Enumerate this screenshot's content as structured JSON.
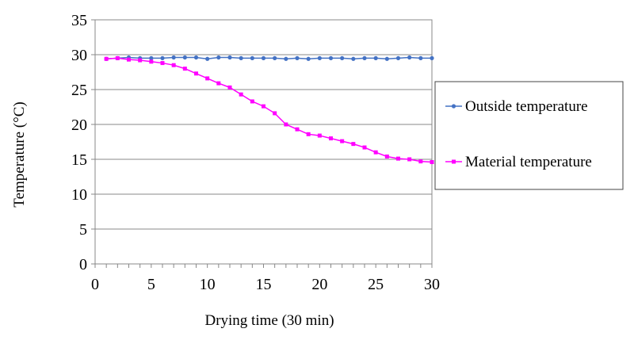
{
  "chart_data": {
    "type": "line",
    "title": "",
    "xlabel": "Drying time (30 min)",
    "ylabel": "Temperature (°C)",
    "xlim": [
      0,
      30
    ],
    "ylim": [
      0,
      35
    ],
    "x_ticks": [
      0,
      5,
      10,
      15,
      20,
      25,
      30
    ],
    "y_ticks": [
      0,
      5,
      10,
      15,
      20,
      25,
      30,
      35
    ],
    "grid": "horizontal",
    "legend_position": "right",
    "x": [
      1,
      2,
      3,
      4,
      5,
      6,
      7,
      8,
      9,
      10,
      11,
      12,
      13,
      14,
      15,
      16,
      17,
      18,
      19,
      20,
      21,
      22,
      23,
      24,
      25,
      26,
      27,
      28,
      29,
      30
    ],
    "series": [
      {
        "name": "Outside temperature",
        "color": "#4472C4",
        "marker": "circle",
        "values": [
          29.4,
          29.5,
          29.6,
          29.5,
          29.5,
          29.5,
          29.6,
          29.6,
          29.6,
          29.4,
          29.6,
          29.6,
          29.5,
          29.5,
          29.5,
          29.5,
          29.4,
          29.5,
          29.4,
          29.5,
          29.5,
          29.5,
          29.4,
          29.5,
          29.5,
          29.4,
          29.5,
          29.6,
          29.5,
          29.5
        ]
      },
      {
        "name": "Material temperature",
        "color": "#FF00FF",
        "marker": "square",
        "values": [
          29.4,
          29.5,
          29.3,
          29.2,
          29.0,
          28.8,
          28.5,
          28.0,
          27.3,
          26.6,
          25.9,
          25.3,
          24.3,
          23.3,
          22.6,
          21.6,
          20.0,
          19.3,
          18.6,
          18.4,
          18.0,
          17.6,
          17.2,
          16.7,
          16.0,
          15.4,
          15.1,
          15.0,
          14.7,
          14.6
        ]
      }
    ]
  }
}
